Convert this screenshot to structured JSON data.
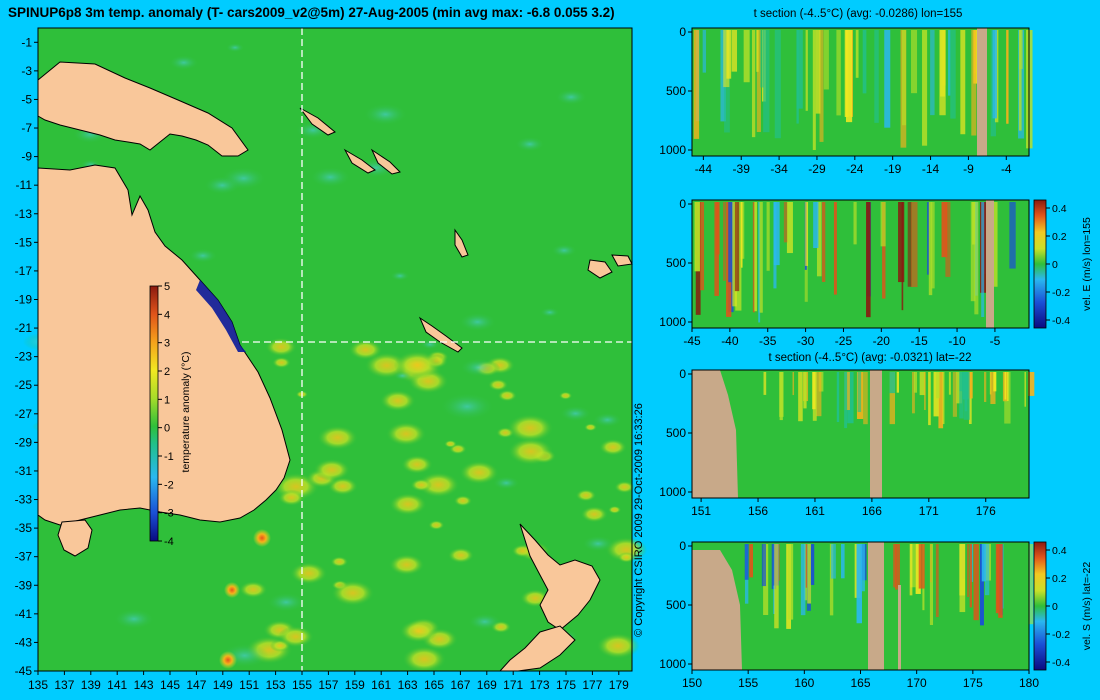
{
  "title": "SPINUP6p8 3m temp. anomaly (T- cars2009_v2@5m) 27-Aug-2005 (min avg max: -6.8 0.055 3.2)",
  "copyright": "© Copyright CSIRO 2009   29-Oct-2009 16:33:26",
  "colors": {
    "background": "#00ccff",
    "land": "#f9c79a",
    "ocean": "#2fbf3a",
    "section_land": "#c8a989"
  },
  "chart_data": [
    {
      "type": "heatmap",
      "title": "SPINUP6p8 3m temp. anomaly (T- cars2009_v2@5m) 27-Aug-2005 (min avg max: -6.8 0.055 3.2)",
      "x_ticks": [
        135,
        137,
        139,
        141,
        143,
        145,
        147,
        149,
        151,
        153,
        155,
        157,
        159,
        161,
        163,
        165,
        167,
        169,
        171,
        173,
        175,
        177,
        179
      ],
      "y_ticks": [
        -1,
        -3,
        -5,
        -7,
        -9,
        -11,
        -13,
        -15,
        -17,
        -19,
        -21,
        -23,
        -25,
        -27,
        -29,
        -31,
        -33,
        -35,
        -37,
        -39,
        -41,
        -43,
        -45
      ],
      "xlim": [
        135,
        180
      ],
      "ylim": [
        -45,
        0
      ],
      "section_lon": 155,
      "section_lat": -22,
      "colorbar": {
        "label": "temperature anomaly (°C)",
        "ticks": [
          5,
          4,
          3,
          2,
          1,
          0,
          -1,
          -2,
          -3,
          -4
        ],
        "range": [
          -4,
          5
        ]
      }
    },
    {
      "type": "heatmap",
      "title": "t section (-4..5°C) (avg: -0.0286) lon=155",
      "x_ticks": [
        -44,
        -39,
        -34,
        -29,
        -24,
        -19,
        -14,
        -9,
        -4
      ],
      "y_ticks": [
        0,
        500,
        1000
      ]
    },
    {
      "type": "heatmap",
      "title": "",
      "x_ticks": [
        -45,
        -40,
        -35,
        -30,
        -25,
        -20,
        -15,
        -10,
        -5
      ],
      "y_ticks": [
        0,
        500,
        1000
      ],
      "colorbar": {
        "label": "vel. E (m/s) lon=155",
        "ticks": [
          "0.4",
          "0.2",
          "0",
          "-0.2",
          "-0.4"
        ],
        "range": [
          -0.4,
          0.4
        ]
      }
    },
    {
      "type": "heatmap",
      "title": "t section (-4..5°C) (avg: -0.0321) lat=-22",
      "x_ticks": [
        151,
        156,
        161,
        166,
        171,
        176
      ],
      "y_ticks": [
        0,
        500,
        1000
      ]
    },
    {
      "type": "heatmap",
      "title": "",
      "x_ticks": [
        150,
        155,
        160,
        165,
        170,
        175,
        180
      ],
      "y_ticks": [
        0,
        500,
        1000
      ],
      "colorbar": {
        "label": "vel. S (m/s) lat=-22",
        "ticks": [
          "0.4",
          "0.2",
          "0",
          "-0.2",
          "-0.4"
        ],
        "range": [
          -0.4,
          0.4
        ]
      }
    }
  ]
}
